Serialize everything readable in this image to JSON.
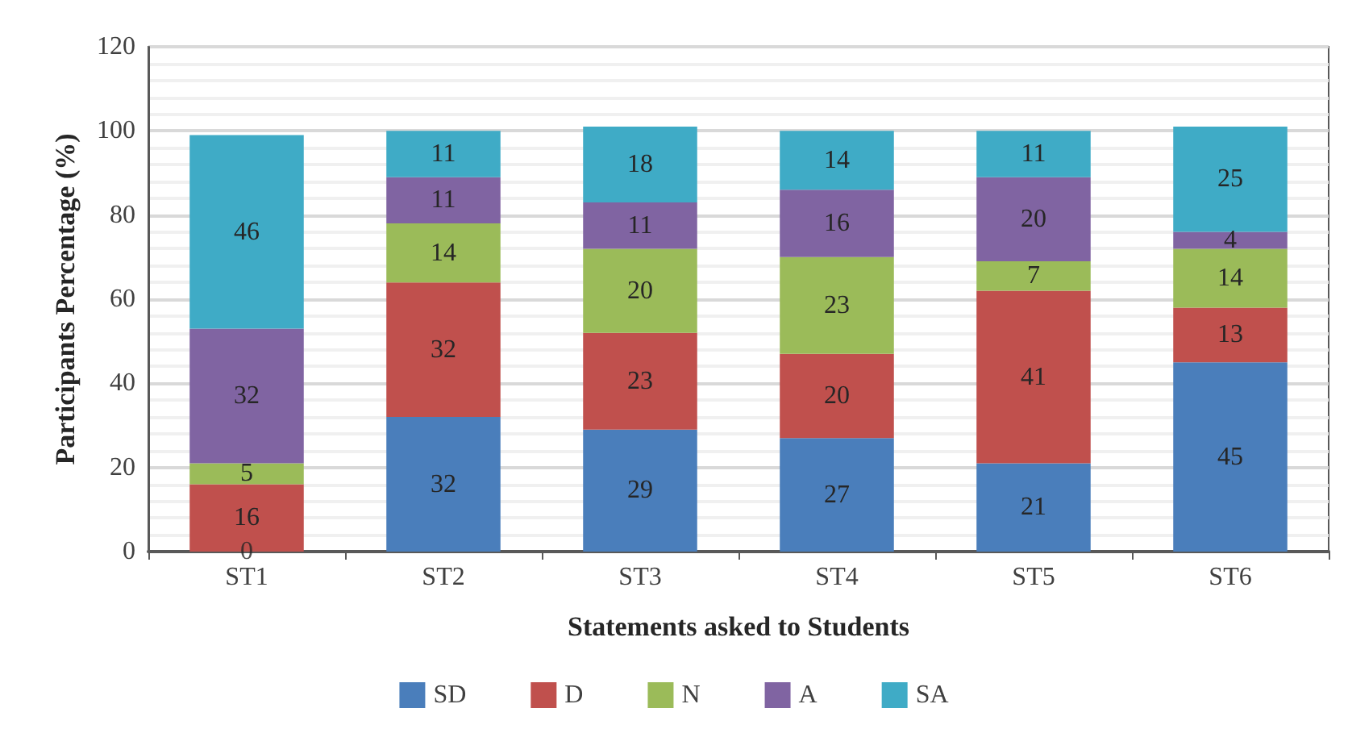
{
  "chart_data": {
    "type": "bar",
    "stacked": true,
    "xlabel": "Statements asked to Students",
    "ylabel": "Participants Percentage (%)",
    "categories": [
      "ST1",
      "ST2",
      "ST3",
      "ST4",
      "ST5",
      "ST6"
    ],
    "series": [
      {
        "name": "SD",
        "color": "#4a7ebb",
        "values": [
          0,
          32,
          29,
          27,
          21,
          45
        ],
        "value_labels": [
          null,
          "32",
          "29",
          "27",
          "21",
          "45"
        ]
      },
      {
        "name": "D",
        "color": "#c0504d",
        "values": [
          16,
          32,
          23,
          20,
          41,
          13
        ]
      },
      {
        "name": "N",
        "color": "#9bbb59",
        "values": [
          5,
          14,
          20,
          23,
          7,
          14
        ]
      },
      {
        "name": "A",
        "color": "#8064a2",
        "values": [
          32,
          11,
          11,
          16,
          20,
          4
        ]
      },
      {
        "name": "SA",
        "color": "#3fabc6",
        "values": [
          46,
          11,
          18,
          14,
          11,
          25
        ]
      }
    ],
    "ylim": [
      0,
      120
    ],
    "yticks": [
      0,
      20,
      40,
      60,
      80,
      100,
      120
    ],
    "grid": "y",
    "legend": "bottom",
    "data_labels": true,
    "annotations": [
      {
        "text": "0",
        "x": "ST1",
        "y": 0
      }
    ]
  }
}
